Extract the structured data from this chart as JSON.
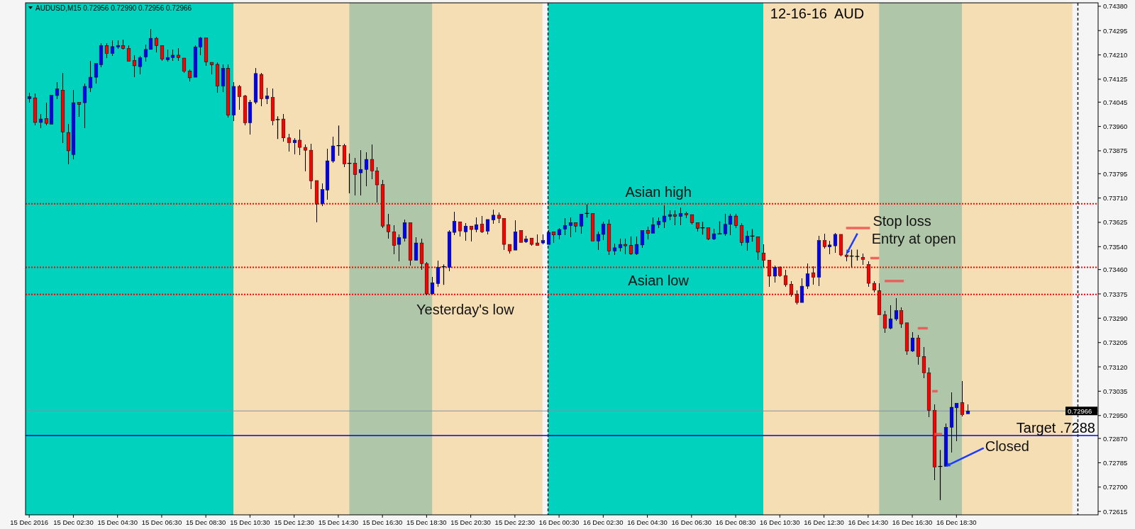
{
  "chart_data": {
    "type": "candlestick",
    "title": "12-16-16  AUD",
    "subtitle": "AUDUSD,M15 0.72956 0.72990 0.72956 0.72966",
    "x": [
      "2016-12-15T00:30",
      "2016-12-15T00:45",
      "2016-12-15T01:00",
      "2016-12-15T01:15",
      "2016-12-15T01:30",
      "2016-12-15T01:45",
      "2016-12-15T02:00",
      "2016-12-15T02:15",
      "2016-12-15T02:30",
      "2016-12-15T02:45",
      "2016-12-15T03:00",
      "2016-12-15T03:15",
      "2016-12-15T03:30",
      "2016-12-15T03:45",
      "2016-12-15T04:00",
      "2016-12-15T04:15",
      "2016-12-15T04:30",
      "2016-12-15T04:45",
      "2016-12-15T05:00",
      "2016-12-15T05:15",
      "2016-12-15T05:30",
      "2016-12-15T05:45",
      "2016-12-15T06:00",
      "2016-12-15T06:15",
      "2016-12-15T06:30",
      "2016-12-15T06:45",
      "2016-12-15T07:00",
      "2016-12-15T07:15",
      "2016-12-15T07:30",
      "2016-12-15T07:45",
      "2016-12-15T08:00",
      "2016-12-15T08:15",
      "2016-12-15T08:30",
      "2016-12-15T08:45",
      "2016-12-15T09:00",
      "2016-12-15T09:15",
      "2016-12-15T09:30",
      "2016-12-15T09:45",
      "2016-12-15T10:00",
      "2016-12-15T10:15",
      "2016-12-15T10:30",
      "2016-12-15T10:45",
      "2016-12-15T11:00",
      "2016-12-15T11:15",
      "2016-12-15T11:30",
      "2016-12-15T11:45",
      "2016-12-15T12:00",
      "2016-12-15T12:15",
      "2016-12-15T12:30",
      "2016-12-15T12:45",
      "2016-12-15T13:00",
      "2016-12-15T13:15",
      "2016-12-15T13:30",
      "2016-12-15T13:45",
      "2016-12-15T14:00",
      "2016-12-15T14:15",
      "2016-12-15T14:30",
      "2016-12-15T14:45",
      "2016-12-15T15:00",
      "2016-12-15T15:15",
      "2016-12-15T15:30",
      "2016-12-15T15:45",
      "2016-12-15T16:00",
      "2016-12-15T16:15",
      "2016-12-15T16:30",
      "2016-12-15T16:45",
      "2016-12-15T17:00",
      "2016-12-15T17:15",
      "2016-12-15T17:30",
      "2016-12-15T17:45",
      "2016-12-15T18:00",
      "2016-12-15T18:15",
      "2016-12-15T18:30",
      "2016-12-15T18:45",
      "2016-12-15T19:00",
      "2016-12-15T19:15",
      "2016-12-15T19:30",
      "2016-12-15T19:45",
      "2016-12-15T20:00",
      "2016-12-15T20:15",
      "2016-12-15T20:30",
      "2016-12-15T20:45",
      "2016-12-15T21:00",
      "2016-12-15T21:15",
      "2016-12-15T21:30",
      "2016-12-15T21:45",
      "2016-12-15T22:00",
      "2016-12-15T22:15",
      "2016-12-15T22:30",
      "2016-12-15T22:45",
      "2016-12-15T23:00",
      "2016-12-15T23:15",
      "2016-12-15T23:30",
      "2016-12-15T23:45",
      "2016-12-16T00:00",
      "2016-12-16T00:15",
      "2016-12-16T00:30",
      "2016-12-16T00:45",
      "2016-12-16T01:00",
      "2016-12-16T01:15",
      "2016-12-16T01:30",
      "2016-12-16T01:45",
      "2016-12-16T02:00",
      "2016-12-16T02:15",
      "2016-12-16T02:30",
      "2016-12-16T02:45",
      "2016-12-16T03:00",
      "2016-12-16T03:15",
      "2016-12-16T03:30",
      "2016-12-16T03:45",
      "2016-12-16T04:00",
      "2016-12-16T04:15",
      "2016-12-16T04:30",
      "2016-12-16T04:45",
      "2016-12-16T05:00",
      "2016-12-16T05:15",
      "2016-12-16T05:30",
      "2016-12-16T05:45",
      "2016-12-16T06:00",
      "2016-12-16T06:15",
      "2016-12-16T06:30",
      "2016-12-16T06:45",
      "2016-12-16T07:00",
      "2016-12-16T07:15",
      "2016-12-16T07:30",
      "2016-12-16T07:45",
      "2016-12-16T08:00",
      "2016-12-16T08:15",
      "2016-12-16T08:30",
      "2016-12-16T08:45",
      "2016-12-16T09:00",
      "2016-12-16T09:15",
      "2016-12-16T09:30",
      "2016-12-16T09:45",
      "2016-12-16T10:00",
      "2016-12-16T10:15",
      "2016-12-16T10:30",
      "2016-12-16T10:45",
      "2016-12-16T11:00",
      "2016-12-16T11:15",
      "2016-12-16T11:30",
      "2016-12-16T11:45",
      "2016-12-16T12:00",
      "2016-12-16T12:15",
      "2016-12-16T12:30",
      "2016-12-16T12:45",
      "2016-12-16T13:00",
      "2016-12-16T13:15",
      "2016-12-16T13:30",
      "2016-12-16T13:45",
      "2016-12-16T14:00",
      "2016-12-16T14:15",
      "2016-12-16T14:30",
      "2016-12-16T14:45",
      "2016-12-16T15:00",
      "2016-12-16T15:15",
      "2016-12-16T15:30",
      "2016-12-16T15:45",
      "2016-12-16T16:00",
      "2016-12-16T16:15",
      "2016-12-16T16:30",
      "2016-12-16T16:45",
      "2016-12-16T17:00",
      "2016-12-16T17:15",
      "2016-12-16T17:30",
      "2016-12-16T17:45",
      "2016-12-16T18:00",
      "2016-12-16T18:15",
      "2016-12-16T18:30",
      "2016-12-16T18:45",
      "2016-12-16T19:00"
    ],
    "ohlc": [
      [
        0.74057,
        0.74078,
        0.74042,
        0.74064
      ],
      [
        0.7406,
        0.74075,
        0.73965,
        0.73974
      ],
      [
        0.73974,
        0.74003,
        0.73953,
        0.73986
      ],
      [
        0.73988,
        0.74044,
        0.73965,
        0.73971
      ],
      [
        0.73968,
        0.74069,
        0.73968,
        0.74069
      ],
      [
        0.74068,
        0.74116,
        0.74056,
        0.74091
      ],
      [
        0.74087,
        0.74147,
        0.73901,
        0.73941
      ],
      [
        0.73939,
        0.7397,
        0.73829,
        0.73875
      ],
      [
        0.73862,
        0.74087,
        0.73846,
        0.74043
      ],
      [
        0.74044,
        0.74046,
        0.73994,
        0.74037
      ],
      [
        0.74043,
        0.7411,
        0.73953,
        0.741
      ],
      [
        0.74095,
        0.7419,
        0.74081,
        0.74132
      ],
      [
        0.74132,
        0.7418,
        0.7411,
        0.7418
      ],
      [
        0.74176,
        0.7425,
        0.74167,
        0.74243
      ],
      [
        0.74243,
        0.74252,
        0.742,
        0.74215
      ],
      [
        0.74215,
        0.74261,
        0.74207,
        0.74239
      ],
      [
        0.74238,
        0.74261,
        0.7423,
        0.74243
      ],
      [
        0.74243,
        0.74264,
        0.74228,
        0.74233
      ],
      [
        0.74233,
        0.74243,
        0.74188,
        0.74188
      ],
      [
        0.74191,
        0.74209,
        0.74133,
        0.74172
      ],
      [
        0.74169,
        0.74207,
        0.74143,
        0.742
      ],
      [
        0.74203,
        0.74246,
        0.74186,
        0.74229
      ],
      [
        0.74229,
        0.74301,
        0.74229,
        0.74268
      ],
      [
        0.74268,
        0.74273,
        0.74219,
        0.74243
      ],
      [
        0.74243,
        0.74243,
        0.74188,
        0.74196
      ],
      [
        0.74193,
        0.74229,
        0.74186,
        0.74201
      ],
      [
        0.74201,
        0.74229,
        0.74188,
        0.74209
      ],
      [
        0.74209,
        0.74233,
        0.74188,
        0.74201
      ],
      [
        0.74199,
        0.74202,
        0.74148,
        0.74153
      ],
      [
        0.74154,
        0.74159,
        0.74118,
        0.7413
      ],
      [
        0.74132,
        0.74244,
        0.74132,
        0.74238
      ],
      [
        0.74238,
        0.74273,
        0.7421,
        0.74269
      ],
      [
        0.74269,
        0.74269,
        0.74173,
        0.74186
      ],
      [
        0.74184,
        0.74186,
        0.74141,
        0.74176
      ],
      [
        0.74177,
        0.74184,
        0.74078,
        0.74101
      ],
      [
        0.74101,
        0.74177,
        0.74081,
        0.74163
      ],
      [
        0.74163,
        0.74176,
        0.7399,
        0.74
      ],
      [
        0.74,
        0.74116,
        0.73979,
        0.741
      ],
      [
        0.741,
        0.74106,
        0.74019,
        0.74064
      ],
      [
        0.74066,
        0.74071,
        0.73963,
        0.73973
      ],
      [
        0.73973,
        0.74053,
        0.73932,
        0.74045
      ],
      [
        0.74045,
        0.74165,
        0.74037,
        0.74145
      ],
      [
        0.74142,
        0.74147,
        0.74031,
        0.74057
      ],
      [
        0.74057,
        0.74095,
        0.74039,
        0.74066
      ],
      [
        0.74062,
        0.74093,
        0.73965,
        0.7398
      ],
      [
        0.73984,
        0.73994,
        0.73918,
        0.73984
      ],
      [
        0.73986,
        0.74004,
        0.73907,
        0.7392
      ],
      [
        0.7392,
        0.73935,
        0.73873,
        0.73903
      ],
      [
        0.73903,
        0.7392,
        0.73863,
        0.73912
      ],
      [
        0.73912,
        0.73949,
        0.7386,
        0.73887
      ],
      [
        0.73887,
        0.73897,
        0.73804,
        0.73877
      ],
      [
        0.73877,
        0.73899,
        0.73742,
        0.7377
      ],
      [
        0.73771,
        0.73773,
        0.73624,
        0.73689
      ],
      [
        0.73691,
        0.73761,
        0.73681,
        0.7374
      ],
      [
        0.73738,
        0.73882,
        0.73705,
        0.7384
      ],
      [
        0.73839,
        0.73925,
        0.73834,
        0.73892
      ],
      [
        0.73893,
        0.73962,
        0.73859,
        0.73893
      ],
      [
        0.73893,
        0.73899,
        0.73819,
        0.73829
      ],
      [
        0.73831,
        0.73864,
        0.73728,
        0.73831
      ],
      [
        0.73832,
        0.7385,
        0.7372,
        0.73792
      ],
      [
        0.73798,
        0.73877,
        0.73718,
        0.7381
      ],
      [
        0.7381,
        0.7387,
        0.73752,
        0.73845
      ],
      [
        0.73845,
        0.73897,
        0.73777,
        0.73805
      ],
      [
        0.73805,
        0.73817,
        0.73695,
        0.73756
      ],
      [
        0.73757,
        0.73773,
        0.73604,
        0.73612
      ],
      [
        0.73617,
        0.73654,
        0.73569,
        0.73592
      ],
      [
        0.73592,
        0.73614,
        0.73514,
        0.73544
      ],
      [
        0.73548,
        0.73583,
        0.73489,
        0.73572
      ],
      [
        0.73569,
        0.73635,
        0.73558,
        0.73624
      ],
      [
        0.73624,
        0.73624,
        0.73474,
        0.73492
      ],
      [
        0.73492,
        0.73572,
        0.73489,
        0.73553
      ],
      [
        0.73553,
        0.73567,
        0.73459,
        0.73481
      ],
      [
        0.73481,
        0.73487,
        0.73371,
        0.73375
      ],
      [
        0.73375,
        0.73435,
        0.73373,
        0.73414
      ],
      [
        0.73411,
        0.73491,
        0.734,
        0.73468
      ],
      [
        0.7347,
        0.73476,
        0.73408,
        0.7347
      ],
      [
        0.73468,
        0.73598,
        0.73455,
        0.73592
      ],
      [
        0.7359,
        0.73661,
        0.73581,
        0.73629
      ],
      [
        0.73627,
        0.73628,
        0.73575,
        0.73595
      ],
      [
        0.73592,
        0.73623,
        0.73561,
        0.73612
      ],
      [
        0.73612,
        0.73612,
        0.73559,
        0.736
      ],
      [
        0.736,
        0.73642,
        0.73591,
        0.73617
      ],
      [
        0.73619,
        0.73647,
        0.73588,
        0.73592
      ],
      [
        0.73594,
        0.73638,
        0.73584,
        0.73635
      ],
      [
        0.73633,
        0.7367,
        0.7362,
        0.7365
      ],
      [
        0.7365,
        0.7366,
        0.73623,
        0.73639
      ],
      [
        0.73639,
        0.73639,
        0.73529,
        0.73548
      ],
      [
        0.73548,
        0.73551,
        0.73515,
        0.73525
      ],
      [
        0.73528,
        0.73633,
        0.73526,
        0.73592
      ],
      [
        0.73597,
        0.73597,
        0.73553,
        0.73555
      ],
      [
        0.73557,
        0.73577,
        0.73553,
        0.73567
      ],
      [
        0.7357,
        0.73573,
        0.73543,
        0.73548
      ],
      [
        0.73553,
        0.73584,
        0.73543,
        0.73544
      ],
      [
        0.73553,
        0.73584,
        0.73548,
        0.73562
      ],
      [
        0.73548,
        0.73598,
        0.73548,
        0.7359
      ],
      [
        0.73592,
        0.73594,
        0.73554,
        0.73581
      ],
      [
        0.73581,
        0.73606,
        0.73565,
        0.736
      ],
      [
        0.73602,
        0.73639,
        0.73581,
        0.73614
      ],
      [
        0.73614,
        0.73643,
        0.73573,
        0.73624
      ],
      [
        0.73624,
        0.73627,
        0.7359,
        0.73612
      ],
      [
        0.73612,
        0.73656,
        0.73585,
        0.73654
      ],
      [
        0.73656,
        0.73686,
        0.73643,
        0.73656
      ],
      [
        0.73656,
        0.73658,
        0.73557,
        0.7356
      ],
      [
        0.7356,
        0.73594,
        0.73529,
        0.73583
      ],
      [
        0.73583,
        0.73628,
        0.73563,
        0.73619
      ],
      [
        0.73619,
        0.73635,
        0.73511,
        0.73525
      ],
      [
        0.73525,
        0.73551,
        0.73511,
        0.73536
      ],
      [
        0.73536,
        0.73567,
        0.73524,
        0.73548
      ],
      [
        0.73548,
        0.73567,
        0.73513,
        0.73543
      ],
      [
        0.73544,
        0.73576,
        0.73511,
        0.73515
      ],
      [
        0.73515,
        0.73576,
        0.73511,
        0.73548
      ],
      [
        0.73546,
        0.73598,
        0.73536,
        0.73597
      ],
      [
        0.73597,
        0.7361,
        0.73565,
        0.73586
      ],
      [
        0.73587,
        0.73642,
        0.73586,
        0.73617
      ],
      [
        0.73617,
        0.73642,
        0.73606,
        0.73629
      ],
      [
        0.73627,
        0.73684,
        0.73606,
        0.73647
      ],
      [
        0.73646,
        0.73668,
        0.73633,
        0.73652
      ],
      [
        0.73652,
        0.73668,
        0.73616,
        0.73646
      ],
      [
        0.73646,
        0.73676,
        0.73614,
        0.73656
      ],
      [
        0.73656,
        0.73661,
        0.73639,
        0.73652
      ],
      [
        0.73652,
        0.73654,
        0.73617,
        0.73624
      ],
      [
        0.73624,
        0.73627,
        0.73592,
        0.73604
      ],
      [
        0.73606,
        0.73625,
        0.73584,
        0.73606
      ],
      [
        0.73606,
        0.73609,
        0.73562,
        0.73567
      ],
      [
        0.73567,
        0.73602,
        0.73562,
        0.73585
      ],
      [
        0.73585,
        0.73627,
        0.73585,
        0.73585
      ],
      [
        0.73585,
        0.73654,
        0.73579,
        0.73618
      ],
      [
        0.73618,
        0.73654,
        0.7358,
        0.73647
      ],
      [
        0.73647,
        0.73654,
        0.73606,
        0.73614
      ],
      [
        0.73614,
        0.73623,
        0.73544,
        0.73555
      ],
      [
        0.73555,
        0.73596,
        0.73525,
        0.73577
      ],
      [
        0.73577,
        0.736,
        0.73559,
        0.73577
      ],
      [
        0.73575,
        0.73575,
        0.73493,
        0.73521
      ],
      [
        0.73518,
        0.73548,
        0.73468,
        0.73492
      ],
      [
        0.73493,
        0.73493,
        0.734,
        0.73437
      ],
      [
        0.73437,
        0.73474,
        0.73414,
        0.73468
      ],
      [
        0.73468,
        0.73472,
        0.73435,
        0.73439
      ],
      [
        0.73439,
        0.73459,
        0.734,
        0.73407
      ],
      [
        0.73409,
        0.7342,
        0.73365,
        0.73373
      ],
      [
        0.73373,
        0.73388,
        0.73338,
        0.73345
      ],
      [
        0.73345,
        0.73429,
        0.73342,
        0.73402
      ],
      [
        0.73402,
        0.73482,
        0.73392,
        0.73445
      ],
      [
        0.73449,
        0.73472,
        0.73406,
        0.73433
      ],
      [
        0.73433,
        0.73579,
        0.73402,
        0.73562
      ],
      [
        0.73562,
        0.73585,
        0.73534,
        0.7354
      ],
      [
        0.73539,
        0.73561,
        0.73513,
        0.73546
      ],
      [
        0.73543,
        0.73587,
        0.73519,
        0.73583
      ],
      [
        0.73583,
        0.73585,
        0.73505,
        0.73511
      ],
      [
        0.73511,
        0.73521,
        0.73488,
        0.73505
      ],
      [
        0.73507,
        0.73528,
        0.7347,
        0.73507
      ],
      [
        0.73506,
        0.73528,
        0.73493,
        0.73506
      ],
      [
        0.73503,
        0.73515,
        0.73476,
        0.73495
      ],
      [
        0.73478,
        0.7349,
        0.734,
        0.73412
      ],
      [
        0.73412,
        0.7342,
        0.73379,
        0.73388
      ],
      [
        0.73386,
        0.73412,
        0.73302,
        0.73302
      ],
      [
        0.73302,
        0.73316,
        0.73239,
        0.73255
      ],
      [
        0.73255,
        0.73335,
        0.73251,
        0.73288
      ],
      [
        0.73287,
        0.73359,
        0.73282,
        0.73317
      ],
      [
        0.73317,
        0.73328,
        0.73257,
        0.7327
      ],
      [
        0.73274,
        0.73274,
        0.73163,
        0.73175
      ],
      [
        0.73175,
        0.73241,
        0.73171,
        0.73221
      ],
      [
        0.73221,
        0.73232,
        0.73128,
        0.73156
      ],
      [
        0.73156,
        0.73189,
        0.73081,
        0.73099
      ],
      [
        0.73099,
        0.73118,
        0.72944,
        0.72968
      ],
      [
        0.72968,
        0.72989,
        0.72725,
        0.7277
      ],
      [
        0.72772,
        0.72828,
        0.72656,
        0.72772
      ],
      [
        0.72772,
        0.72921,
        0.72772,
        0.72909
      ],
      [
        0.72909,
        0.73031,
        0.72821,
        0.72979
      ],
      [
        0.72977,
        0.72993,
        0.72861,
        0.72993
      ],
      [
        0.72995,
        0.73071,
        0.72948,
        0.72953
      ],
      [
        0.72956,
        0.7299,
        0.72956,
        0.72966
      ]
    ],
    "series": [
      {
        "type": "line",
        "color": "#ef4f4f",
        "x": [
          "2016-12-16T13:30",
          "2016-12-16T14:35"
        ],
        "values": [
          0.73605,
          0.73605
        ]
      },
      {
        "type": "line",
        "color": "#ef4f4f",
        "x": [
          "2016-12-16T14:36",
          "2016-12-16T15:00"
        ],
        "values": [
          0.735,
          0.735
        ]
      },
      {
        "type": "line",
        "color": "#ef4f4f",
        "x": [
          "2016-12-16T15:15",
          "2016-12-16T16:07"
        ],
        "values": [
          0.7342,
          0.7342
        ]
      },
      {
        "type": "line",
        "color": "#ef4f4f",
        "x": [
          "2016-12-16T16:45",
          "2016-12-16T17:12"
        ],
        "values": [
          0.73255,
          0.73255
        ]
      },
      {
        "type": "line",
        "color": "#ef4f4f",
        "x": [
          "2016-12-16T17:24",
          "2016-12-16T17:39"
        ],
        "values": [
          0.73035,
          0.73035
        ]
      },
      {
        "type": "line",
        "color": "#ef4f4f",
        "x": [
          "2016-12-16T17:30",
          "2016-12-16T17:51"
        ],
        "values": [
          0.72885,
          0.72885
        ]
      }
    ],
    "xlim": [
      "2016-12-15T00:20",
      "2016-12-17T00:55"
    ],
    "ylim": [
      0.72603,
      0.74392
    ],
    "xticks": [
      {
        "value": "2016-12-15T00:30",
        "label": "15 Dec 2016"
      },
      {
        "value": "2016-12-15T02:30",
        "label": "15 Dec 02:30"
      },
      {
        "value": "2016-12-15T04:30",
        "label": "15 Dec 04:30"
      },
      {
        "value": "2016-12-15T06:30",
        "label": "15 Dec 06:30"
      },
      {
        "value": "2016-12-15T08:30",
        "label": "15 Dec 08:30"
      },
      {
        "value": "2016-12-15T10:30",
        "label": "15 Dec 10:30"
      },
      {
        "value": "2016-12-15T12:30",
        "label": "15 Dec 12:30"
      },
      {
        "value": "2016-12-15T14:30",
        "label": "15 Dec 14:30"
      },
      {
        "value": "2016-12-15T16:30",
        "label": "15 Dec 16:30"
      },
      {
        "value": "2016-12-15T18:30",
        "label": "15 Dec 18:30"
      },
      {
        "value": "2016-12-15T20:30",
        "label": "15 Dec 20:30"
      },
      {
        "value": "2016-12-15T22:30",
        "label": "15 Dec 22:30"
      },
      {
        "value": "2016-12-16T00:30",
        "label": "16 Dec 00:30"
      },
      {
        "value": "2016-12-16T02:30",
        "label": "16 Dec 02:30"
      },
      {
        "value": "2016-12-16T04:30",
        "label": "16 Dec 04:30"
      },
      {
        "value": "2016-12-16T06:30",
        "label": "16 Dec 06:30"
      },
      {
        "value": "2016-12-16T08:30",
        "label": "16 Dec 08:30"
      },
      {
        "value": "2016-12-16T10:30",
        "label": "16 Dec 10:30"
      },
      {
        "value": "2016-12-16T12:30",
        "label": "16 Dec 12:30"
      },
      {
        "value": "2016-12-16T14:30",
        "label": "16 Dec 14:30"
      },
      {
        "value": "2016-12-16T16:30",
        "label": "16 Dec 16:30"
      },
      {
        "value": "2016-12-16T18:30",
        "label": "16 Dec 18:30"
      }
    ],
    "yticks": [
      {
        "value": 0.7438,
        "label": "0.74380"
      },
      {
        "value": 0.74295,
        "label": "0.74295"
      },
      {
        "value": 0.7421,
        "label": "0.74210"
      },
      {
        "value": 0.74125,
        "label": "0.74125"
      },
      {
        "value": 0.74045,
        "label": "0.74045"
      },
      {
        "value": 0.7396,
        "label": "0.73960"
      },
      {
        "value": 0.73875,
        "label": "0.73875"
      },
      {
        "value": 0.73795,
        "label": "0.73795"
      },
      {
        "value": 0.7371,
        "label": "0.73710"
      },
      {
        "value": 0.73625,
        "label": "0.73625"
      },
      {
        "value": 0.7354,
        "label": "0.73540"
      },
      {
        "value": 0.7346,
        "label": "0.73460"
      },
      {
        "value": 0.73375,
        "label": "0.73375"
      },
      {
        "value": 0.7329,
        "label": "0.73290"
      },
      {
        "value": 0.73205,
        "label": "0.73205"
      },
      {
        "value": 0.7312,
        "label": "0.73120"
      },
      {
        "value": 0.73035,
        "label": "0.73035"
      },
      {
        "value": 0.7295,
        "label": "0.72950"
      },
      {
        "value": 0.7287,
        "label": "0.72870"
      },
      {
        "value": 0.72785,
        "label": "0.72785"
      },
      {
        "value": 0.727,
        "label": "0.72700"
      },
      {
        "value": 0.72615,
        "label": "0.72615"
      }
    ],
    "bands": [
      {
        "axis": "x",
        "from": "2016-12-15T00:20",
        "to": "2016-12-15T23:45",
        "color": "#f5deb3"
      },
      {
        "axis": "x",
        "from": "2016-12-16T00:00",
        "to": "2016-12-16T23:45",
        "color": "#f5deb3"
      },
      {
        "axis": "x",
        "from": "2016-12-15T00:20",
        "to": "2016-12-15T09:45",
        "color": "#00d2bd"
      },
      {
        "axis": "x",
        "from": "2016-12-16T00:00",
        "to": "2016-12-16T09:45",
        "color": "#00d2bd"
      },
      {
        "axis": "x",
        "from": "2016-12-15T15:00",
        "to": "2016-12-15T18:45",
        "color": "#b0c6a9"
      },
      {
        "axis": "x",
        "from": "2016-12-16T15:00",
        "to": "2016-12-16T18:45",
        "color": "#b0c6a9"
      }
    ],
    "ref_lines": [
      {
        "axis": "y",
        "value": 0.7369,
        "color": "#ff0000",
        "line_style": "dotted"
      },
      {
        "axis": "y",
        "value": 0.73468,
        "color": "#ff0000",
        "line_style": "dotted"
      },
      {
        "axis": "y",
        "value": 0.73373,
        "color": "#ff0000",
        "line_style": "dotted"
      },
      {
        "axis": "x",
        "value": "2016-12-16T00:00",
        "color": "#202020",
        "line_style": "dashed"
      },
      {
        "axis": "x",
        "value": "2016-12-17T00:00",
        "color": "#202020",
        "line_style": "dashed"
      },
      {
        "axis": "y",
        "value": 0.72966,
        "label": "0.72966",
        "color": "#8393a7",
        "line_style": "solid"
      },
      {
        "axis": "y",
        "value": 0.7288,
        "label": "Target .7288",
        "color": "#0000ff",
        "line_style": "solid"
      }
    ],
    "annotations": [
      {
        "text": "Asian high",
        "x": "2016-12-16T05:00",
        "y": 0.7369
      },
      {
        "text": "Asian low",
        "x": "2016-12-16T05:00",
        "y": 0.73468
      },
      {
        "text": "Yesterday's low",
        "x": "2016-12-15T20:15",
        "y": 0.73373
      },
      {
        "text": "Stop loss",
        "x": "2016-12-16T14:35",
        "y": 0.73605
      },
      {
        "text": "Entry at open",
        "x": "2016-12-16T13:30",
        "y": 0.73512
      },
      {
        "text": "Closed",
        "x": "2016-12-16T18:00",
        "y": 0.72772
      }
    ]
  }
}
